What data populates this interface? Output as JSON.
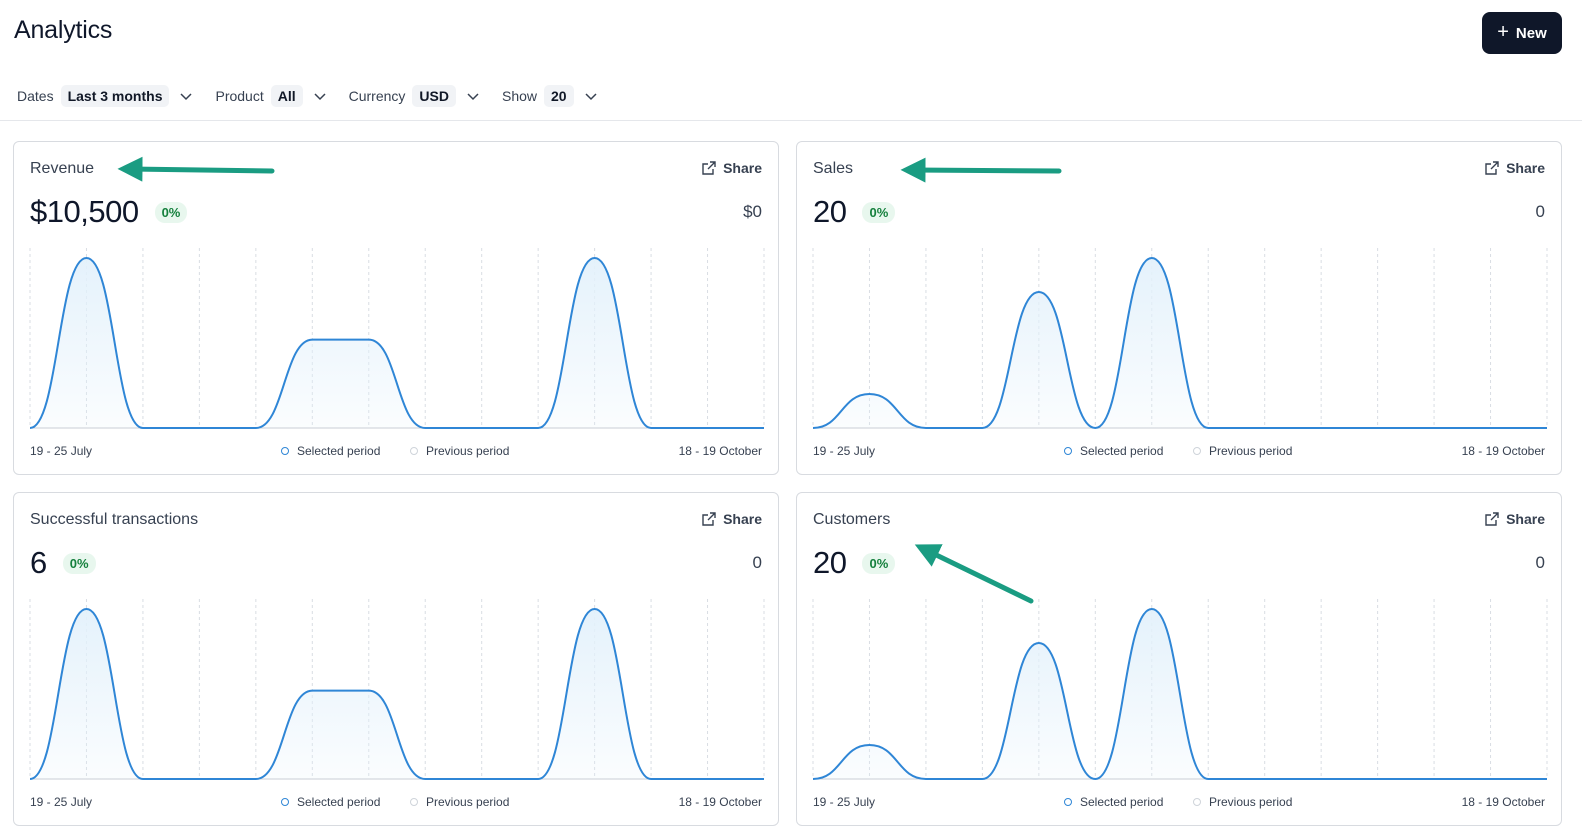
{
  "page": {
    "title": "Analytics"
  },
  "new_button": {
    "label": "New",
    "icon": "plus-icon"
  },
  "filters": [
    {
      "label": "Dates",
      "value": "Last 3 months"
    },
    {
      "label": "Product",
      "value": "All"
    },
    {
      "label": "Currency",
      "value": "USD"
    },
    {
      "label": "Show",
      "value": "20"
    }
  ],
  "colors": {
    "accent": "#2f86d6",
    "fill": "#e3f1fb",
    "badge_bg": "#e8f7ee",
    "badge_text": "#15803d",
    "button_bg": "#0f1729",
    "annotation_arrow": "#1a9c82"
  },
  "legend": {
    "selected": "Selected period",
    "previous": "Previous period"
  },
  "cards": [
    {
      "title": "Revenue",
      "share_label": "Share",
      "value": "$10,500",
      "change": "0%",
      "previous_value": "$0",
      "range_start": "19 - 25 July",
      "range_end": "18 - 19 October",
      "chart_data": {
        "type": "area",
        "y_max": 1,
        "series": [
          {
            "values": [
              0,
              1,
              0,
              0,
              0,
              0.52,
              0.52,
              0,
              0,
              0,
              1,
              0,
              0,
              0
            ]
          }
        ]
      }
    },
    {
      "title": "Sales",
      "share_label": "Share",
      "value": "20",
      "change": "0%",
      "previous_value": "0",
      "range_start": "19 - 25 July",
      "range_end": "18 - 19 October",
      "chart_data": {
        "type": "area",
        "y_max": 1,
        "series": [
          {
            "values": [
              0,
              0.2,
              0,
              0,
              0.8,
              0,
              1,
              0,
              0,
              0,
              0,
              0,
              0,
              0
            ]
          }
        ]
      }
    },
    {
      "title": "Successful transactions",
      "share_label": "Share",
      "value": "6",
      "change": "0%",
      "previous_value": "0",
      "range_start": "19 - 25 July",
      "range_end": "18 - 19 October",
      "chart_data": {
        "type": "area",
        "y_max": 1,
        "series": [
          {
            "values": [
              0,
              1,
              0,
              0,
              0,
              0.52,
              0.52,
              0,
              0,
              0,
              1,
              0,
              0,
              0
            ]
          }
        ]
      }
    },
    {
      "title": "Customers",
      "share_label": "Share",
      "value": "20",
      "change": "0%",
      "previous_value": "0",
      "range_start": "19 - 25 July",
      "range_end": "18 - 19 October",
      "chart_data": {
        "type": "area",
        "y_max": 1,
        "series": [
          {
            "values": [
              0,
              0.2,
              0,
              0,
              0.8,
              0,
              1,
              0,
              0,
              0,
              0,
              0,
              0,
              0
            ]
          }
        ]
      }
    }
  ]
}
